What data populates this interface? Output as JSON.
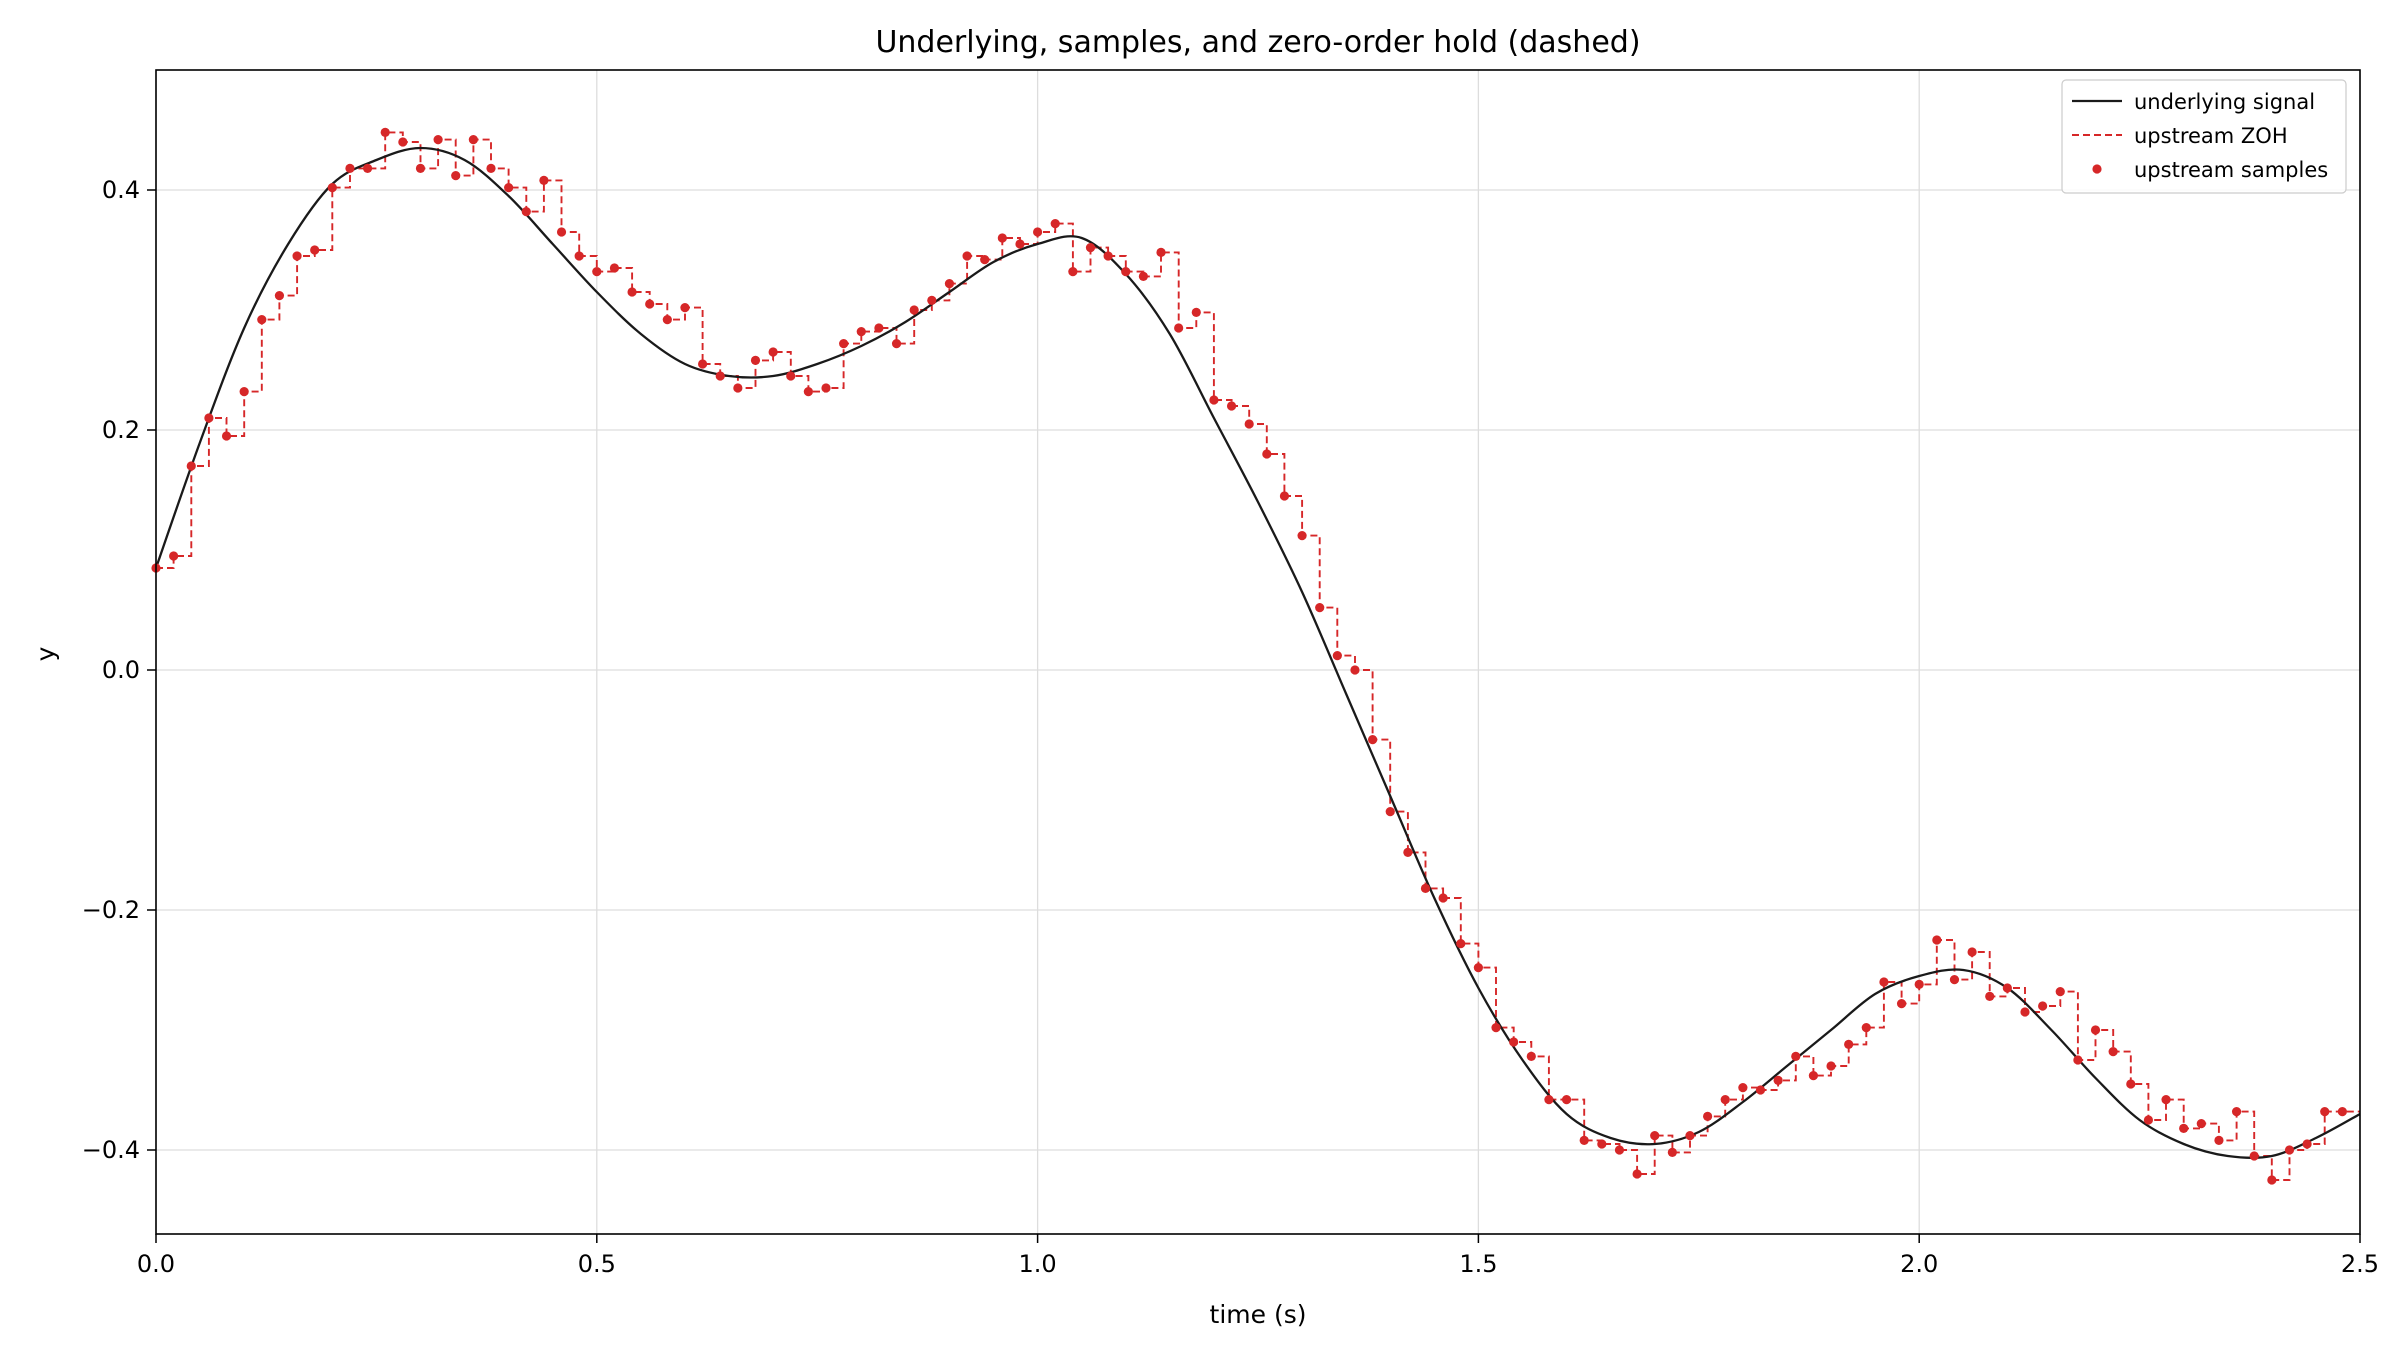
{
  "chart_data": {
    "type": "line",
    "title": "Underlying, samples, and zero-order hold (dashed)",
    "xlabel": "time (s)",
    "ylabel": "y",
    "xlim": [
      0.0,
      2.5
    ],
    "ylim": [
      -0.47,
      0.5
    ],
    "x_ticks": [
      "0.0",
      "0.5",
      "1.0",
      "1.5",
      "2.0",
      "2.5"
    ],
    "y_ticks": [
      "−0.4",
      "−0.2",
      "0.0",
      "0.2",
      "0.4"
    ],
    "grid": true,
    "legend_position": "top-right",
    "colors": {
      "underlying": "#1a1a1a",
      "zoh": "#d62728",
      "samples": "#d62728"
    },
    "series": [
      {
        "name": "underlying signal",
        "style": "solid",
        "x": [
          0.0,
          0.05,
          0.1,
          0.15,
          0.2,
          0.25,
          0.3,
          0.35,
          0.4,
          0.45,
          0.5,
          0.55,
          0.6,
          0.65,
          0.7,
          0.75,
          0.8,
          0.85,
          0.9,
          0.95,
          1.0,
          1.05,
          1.1,
          1.15,
          1.2,
          1.25,
          1.3,
          1.35,
          1.4,
          1.45,
          1.5,
          1.55,
          1.6,
          1.65,
          1.7,
          1.75,
          1.8,
          1.85,
          1.9,
          1.95,
          2.0,
          2.05,
          2.1,
          2.15,
          2.2,
          2.25,
          2.3,
          2.35,
          2.4,
          2.45,
          2.5
        ],
        "y": [
          0.085,
          0.19,
          0.285,
          0.355,
          0.405,
          0.425,
          0.435,
          0.425,
          0.395,
          0.355,
          0.315,
          0.28,
          0.255,
          0.245,
          0.245,
          0.255,
          0.27,
          0.29,
          0.315,
          0.34,
          0.355,
          0.36,
          0.33,
          0.28,
          0.21,
          0.14,
          0.065,
          -0.02,
          -0.105,
          -0.19,
          -0.265,
          -0.325,
          -0.37,
          -0.39,
          -0.395,
          -0.385,
          -0.36,
          -0.33,
          -0.3,
          -0.27,
          -0.255,
          -0.25,
          -0.265,
          -0.3,
          -0.34,
          -0.375,
          -0.395,
          -0.405,
          -0.405,
          -0.39,
          -0.37
        ]
      },
      {
        "name": "upstream ZOH",
        "style": "dashed",
        "x": [
          0.0,
          0.02,
          0.04,
          0.06,
          0.08,
          0.1,
          0.12,
          0.14,
          0.16,
          0.18,
          0.2,
          0.22,
          0.24,
          0.26,
          0.28,
          0.3,
          0.32,
          0.34,
          0.36,
          0.38,
          0.4,
          0.42,
          0.44,
          0.46,
          0.48,
          0.5,
          0.52,
          0.54,
          0.56,
          0.58,
          0.6,
          0.62,
          0.64,
          0.66,
          0.68,
          0.7,
          0.72,
          0.74,
          0.76,
          0.78,
          0.8,
          0.82,
          0.84,
          0.86,
          0.88,
          0.9,
          0.92,
          0.94,
          0.96,
          0.98,
          1.0,
          1.02,
          1.04,
          1.06,
          1.08,
          1.1,
          1.12,
          1.14,
          1.16,
          1.18,
          1.2,
          1.22,
          1.24,
          1.26,
          1.28,
          1.3,
          1.32,
          1.34,
          1.36,
          1.38,
          1.4,
          1.42,
          1.44,
          1.46,
          1.48,
          1.5,
          1.52,
          1.54,
          1.56,
          1.58,
          1.6,
          1.62,
          1.64,
          1.66,
          1.68,
          1.7,
          1.72,
          1.74,
          1.76,
          1.78,
          1.8,
          1.82,
          1.84,
          1.86,
          1.88,
          1.9,
          1.92,
          1.94,
          1.96,
          1.98,
          2.0,
          2.02,
          2.04,
          2.06,
          2.08,
          2.1,
          2.12,
          2.14,
          2.16,
          2.18,
          2.2,
          2.22,
          2.24,
          2.26,
          2.28,
          2.3,
          2.32,
          2.34,
          2.36,
          2.38,
          2.4,
          2.42,
          2.44,
          2.46,
          2.48
        ],
        "y": [
          0.085,
          0.095,
          0.17,
          0.21,
          0.195,
          0.232,
          0.292,
          0.312,
          0.345,
          0.35,
          0.402,
          0.418,
          0.418,
          0.448,
          0.44,
          0.418,
          0.442,
          0.412,
          0.442,
          0.418,
          0.402,
          0.382,
          0.408,
          0.365,
          0.345,
          0.332,
          0.335,
          0.315,
          0.305,
          0.292,
          0.302,
          0.255,
          0.245,
          0.235,
          0.258,
          0.265,
          0.245,
          0.232,
          0.235,
          0.272,
          0.282,
          0.285,
          0.272,
          0.3,
          0.308,
          0.322,
          0.345,
          0.342,
          0.36,
          0.355,
          0.365,
          0.372,
          0.332,
          0.352,
          0.345,
          0.332,
          0.328,
          0.348,
          0.285,
          0.298,
          0.225,
          0.22,
          0.205,
          0.18,
          0.145,
          0.112,
          0.052,
          0.012,
          0.0,
          -0.058,
          -0.118,
          -0.152,
          -0.182,
          -0.19,
          -0.228,
          -0.248,
          -0.298,
          -0.31,
          -0.322,
          -0.358,
          -0.358,
          -0.392,
          -0.395,
          -0.4,
          -0.42,
          -0.388,
          -0.402,
          -0.388,
          -0.372,
          -0.358,
          -0.348,
          -0.35,
          -0.342,
          -0.322,
          -0.338,
          -0.33,
          -0.312,
          -0.298,
          -0.26,
          -0.278,
          -0.262,
          -0.225,
          -0.258,
          -0.235,
          -0.272,
          -0.265,
          -0.285,
          -0.28,
          -0.268,
          -0.325,
          -0.3,
          -0.318,
          -0.345,
          -0.375,
          -0.358,
          -0.382,
          -0.378,
          -0.392,
          -0.368,
          -0.405,
          -0.425,
          -0.4,
          -0.395,
          -0.368,
          -0.368
        ]
      },
      {
        "name": "upstream samples",
        "style": "markers",
        "x": [
          0.0,
          0.02,
          0.04,
          0.06,
          0.08,
          0.1,
          0.12,
          0.14,
          0.16,
          0.18,
          0.2,
          0.22,
          0.24,
          0.26,
          0.28,
          0.3,
          0.32,
          0.34,
          0.36,
          0.38,
          0.4,
          0.42,
          0.44,
          0.46,
          0.48,
          0.5,
          0.52,
          0.54,
          0.56,
          0.58,
          0.6,
          0.62,
          0.64,
          0.66,
          0.68,
          0.7,
          0.72,
          0.74,
          0.76,
          0.78,
          0.8,
          0.82,
          0.84,
          0.86,
          0.88,
          0.9,
          0.92,
          0.94,
          0.96,
          0.98,
          1.0,
          1.02,
          1.04,
          1.06,
          1.08,
          1.1,
          1.12,
          1.14,
          1.16,
          1.18,
          1.2,
          1.22,
          1.24,
          1.26,
          1.28,
          1.3,
          1.32,
          1.34,
          1.36,
          1.38,
          1.4,
          1.42,
          1.44,
          1.46,
          1.48,
          1.5,
          1.52,
          1.54,
          1.56,
          1.58,
          1.6,
          1.62,
          1.64,
          1.66,
          1.68,
          1.7,
          1.72,
          1.74,
          1.76,
          1.78,
          1.8,
          1.82,
          1.84,
          1.86,
          1.88,
          1.9,
          1.92,
          1.94,
          1.96,
          1.98,
          2.0,
          2.02,
          2.04,
          2.06,
          2.08,
          2.1,
          2.12,
          2.14,
          2.16,
          2.18,
          2.2,
          2.22,
          2.24,
          2.26,
          2.28,
          2.3,
          2.32,
          2.34,
          2.36,
          2.38,
          2.4,
          2.42,
          2.44,
          2.46,
          2.48
        ],
        "y": [
          0.085,
          0.095,
          0.17,
          0.21,
          0.195,
          0.232,
          0.292,
          0.312,
          0.345,
          0.35,
          0.402,
          0.418,
          0.418,
          0.448,
          0.44,
          0.418,
          0.442,
          0.412,
          0.442,
          0.418,
          0.402,
          0.382,
          0.408,
          0.365,
          0.345,
          0.332,
          0.335,
          0.315,
          0.305,
          0.292,
          0.302,
          0.255,
          0.245,
          0.235,
          0.258,
          0.265,
          0.245,
          0.232,
          0.235,
          0.272,
          0.282,
          0.285,
          0.272,
          0.3,
          0.308,
          0.322,
          0.345,
          0.342,
          0.36,
          0.355,
          0.365,
          0.372,
          0.332,
          0.352,
          0.345,
          0.332,
          0.328,
          0.348,
          0.285,
          0.298,
          0.225,
          0.22,
          0.205,
          0.18,
          0.145,
          0.112,
          0.052,
          0.012,
          0.0,
          -0.058,
          -0.118,
          -0.152,
          -0.182,
          -0.19,
          -0.228,
          -0.248,
          -0.298,
          -0.31,
          -0.322,
          -0.358,
          -0.358,
          -0.392,
          -0.395,
          -0.4,
          -0.42,
          -0.388,
          -0.402,
          -0.388,
          -0.372,
          -0.358,
          -0.348,
          -0.35,
          -0.342,
          -0.322,
          -0.338,
          -0.33,
          -0.312,
          -0.298,
          -0.26,
          -0.278,
          -0.262,
          -0.225,
          -0.258,
          -0.235,
          -0.272,
          -0.265,
          -0.285,
          -0.28,
          -0.268,
          -0.325,
          -0.3,
          -0.318,
          -0.345,
          -0.375,
          -0.358,
          -0.382,
          -0.378,
          -0.392,
          -0.368,
          -0.405,
          -0.425,
          -0.4,
          -0.395,
          -0.368,
          -0.368
        ]
      }
    ]
  }
}
